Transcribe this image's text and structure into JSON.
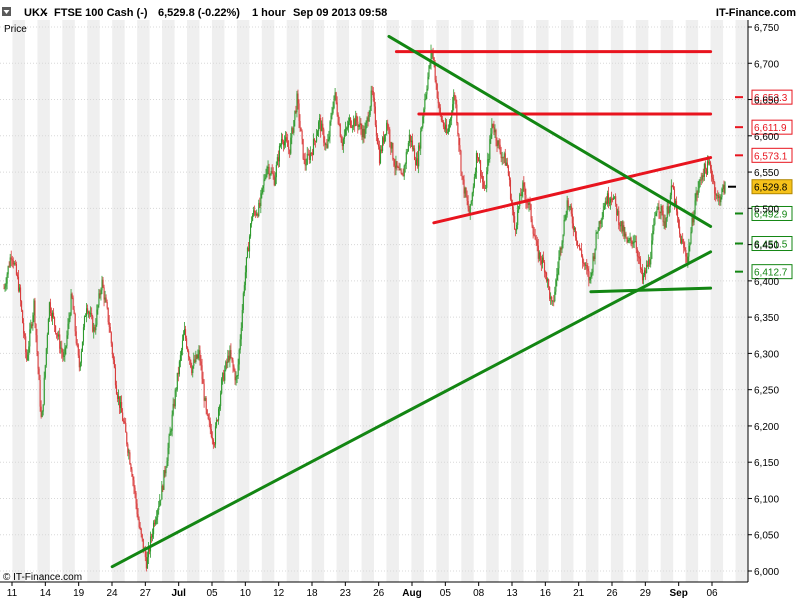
{
  "header": {
    "symbol": "UKX",
    "instrument": "FTSE 100 Cash (-)",
    "quote": "6,529.8 (-0.22%)",
    "timeframe": "1 hour",
    "datetime": "Sep 09 2013 09:58",
    "source": "IT-Finance.com"
  },
  "chart_label": "Price",
  "copyright": "© IT-Finance.com",
  "colors": {
    "up": "#2e9a2e",
    "down": "#d93c3c",
    "resistance": "#e8141e",
    "support": "#138613",
    "last_badge": "#f6c21a",
    "stripe": "#efefef"
  },
  "chart_data": {
    "type": "candlestick",
    "title": "UKX - FTSE 100 Cash (-)",
    "ylabel": "Price",
    "ylim": [
      6000,
      6760
    ],
    "y_ticks": [
      "6,000",
      "6,050",
      "6,100",
      "6,150",
      "6,200",
      "6,250",
      "6,300",
      "6,350",
      "6,400",
      "6,450",
      "6,500",
      "6,550",
      "6,600",
      "6,650",
      "6,700",
      "6,750"
    ],
    "x_ticks": [
      {
        "label": "11",
        "bold": false
      },
      {
        "label": "14",
        "bold": false
      },
      {
        "label": "19",
        "bold": false
      },
      {
        "label": "24",
        "bold": false
      },
      {
        "label": "27",
        "bold": false
      },
      {
        "label": "Jul",
        "bold": true
      },
      {
        "label": "05",
        "bold": false
      },
      {
        "label": "10",
        "bold": false
      },
      {
        "label": "12",
        "bold": false
      },
      {
        "label": "18",
        "bold": false
      },
      {
        "label": "23",
        "bold": false
      },
      {
        "label": "26",
        "bold": false
      },
      {
        "label": "Aug",
        "bold": true
      },
      {
        "label": "05",
        "bold": false
      },
      {
        "label": "08",
        "bold": false
      },
      {
        "label": "13",
        "bold": false
      },
      {
        "label": "16",
        "bold": false
      },
      {
        "label": "21",
        "bold": false
      },
      {
        "label": "26",
        "bold": false
      },
      {
        "label": "29",
        "bold": false
      },
      {
        "label": "Sep",
        "bold": true
      },
      {
        "label": "06",
        "bold": false
      }
    ],
    "path": [
      6390,
      6440,
      6390,
      6290,
      6370,
      6200,
      6370,
      6330,
      6290,
      6380,
      6280,
      6370,
      6330,
      6400,
      6340,
      6250,
      6200,
      6140,
      6060,
      6010,
      6070,
      6110,
      6180,
      6260,
      6330,
      6280,
      6300,
      6210,
      6180,
      6260,
      6300,
      6260,
      6400,
      6490,
      6500,
      6560,
      6540,
      6600,
      6580,
      6650,
      6560,
      6580,
      6620,
      6580,
      6660,
      6590,
      6620,
      6620,
      6600,
      6660,
      6570,
      6620,
      6560,
      6540,
      6600,
      6560,
      6650,
      6720,
      6630,
      6600,
      6660,
      6540,
      6490,
      6580,
      6520,
      6620,
      6580,
      6560,
      6470,
      6530,
      6500,
      6440,
      6420,
      6360,
      6440,
      6510,
      6470,
      6430,
      6400,
      6470,
      6510,
      6520,
      6480,
      6450,
      6460,
      6400,
      6430,
      6510,
      6480,
      6530,
      6460,
      6430,
      6510,
      6550,
      6560,
      6510,
      6530
    ],
    "last_price": "6,529.8",
    "price_markers": [
      {
        "label": "6,653.3",
        "value": 6653.3,
        "kind": "resistance"
      },
      {
        "label": "6,611.9",
        "value": 6611.9,
        "kind": "resistance"
      },
      {
        "label": "6,573.1",
        "value": 6573.1,
        "kind": "resistance"
      },
      {
        "label": "6,492.9",
        "value": 6492.9,
        "kind": "support"
      },
      {
        "label": "6,451.5",
        "value": 6451.5,
        "kind": "support"
      },
      {
        "label": "6,412.7",
        "value": 6412.7,
        "kind": "support"
      }
    ],
    "trendlines": [
      {
        "kind": "resistance",
        "from": {
          "bar": 0.53,
          "price": 6716
        },
        "to": {
          "bar": 0.95,
          "price": 6716
        }
      },
      {
        "kind": "resistance",
        "from": {
          "bar": 0.56,
          "price": 6630
        },
        "to": {
          "bar": 0.95,
          "price": 6630
        }
      },
      {
        "kind": "resistance",
        "from": {
          "bar": 0.58,
          "price": 6480
        },
        "to": {
          "bar": 0.95,
          "price": 6570
        }
      },
      {
        "kind": "support",
        "from": {
          "bar": 0.52,
          "price": 6737
        },
        "to": {
          "bar": 0.95,
          "price": 6475
        }
      },
      {
        "kind": "support",
        "from": {
          "bar": 0.15,
          "price": 6006
        },
        "to": {
          "bar": 0.95,
          "price": 6440
        }
      },
      {
        "kind": "support",
        "from": {
          "bar": 0.79,
          "price": 6385
        },
        "to": {
          "bar": 0.95,
          "price": 6390
        }
      }
    ]
  }
}
